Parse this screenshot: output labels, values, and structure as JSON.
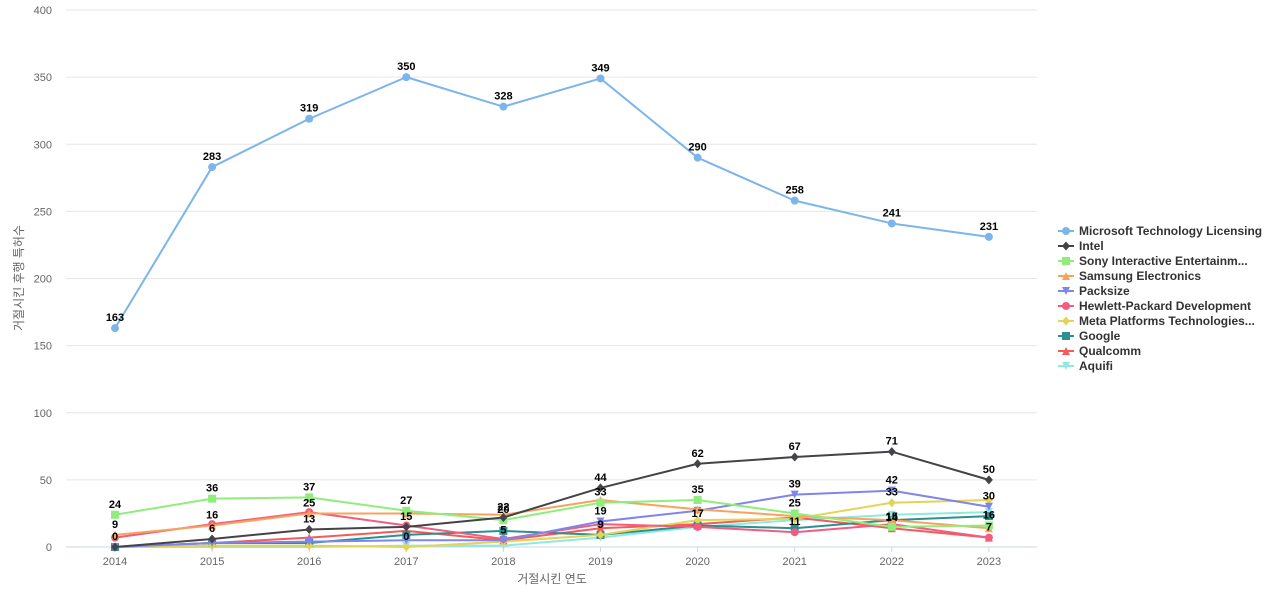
{
  "chart_data": {
    "type": "line",
    "title": "",
    "xlabel": "거절시킨 연도",
    "ylabel": "거절시킨 후행 특허수",
    "ylim": [
      0,
      400
    ],
    "yticks": [
      0,
      50,
      100,
      150,
      200,
      250,
      300,
      350,
      400
    ],
    "categories": [
      "2014",
      "2015",
      "2016",
      "2017",
      "2018",
      "2019",
      "2020",
      "2021",
      "2022",
      "2023"
    ],
    "grid": true,
    "legend_position": "right",
    "series": [
      {
        "name": "Microsoft Technology Licensing",
        "color": "#7cb5ec",
        "marker": "circle",
        "values": [
          163,
          283,
          319,
          350,
          328,
          349,
          290,
          258,
          241,
          231
        ],
        "labeled": true
      },
      {
        "name": "Intel",
        "color": "#434348",
        "marker": "diamond",
        "values": [
          0,
          6,
          13,
          15,
          22,
          44,
          62,
          67,
          71,
          50
        ],
        "labeled": true
      },
      {
        "name": "Sony Interactive Entertainm...",
        "color": "#90ed7d",
        "marker": "square",
        "values": [
          24,
          36,
          37,
          27,
          20,
          33,
          35,
          25,
          15,
          16
        ],
        "labeled": true
      },
      {
        "name": "Samsung Electronics",
        "color": "#f7a35c",
        "marker": "triangle",
        "values": [
          9,
          16,
          25,
          25,
          24,
          35,
          28,
          23,
          20,
          14
        ],
        "labeled": false
      },
      {
        "name": "Packsize",
        "color": "#8085e9",
        "marker": "triangle-down",
        "values": [
          0,
          3,
          4,
          5,
          5,
          19,
          27,
          39,
          42,
          30
        ],
        "labeled": false
      },
      {
        "name": "Hewlett-Packard Development",
        "color": "#f15c80",
        "marker": "circle",
        "values": [
          7,
          17,
          26,
          16,
          6,
          17,
          15,
          11,
          17,
          7
        ],
        "labeled": false
      },
      {
        "name": "Meta Platforms Technologies...",
        "color": "#e4d354",
        "marker": "diamond",
        "values": [
          0,
          1,
          1,
          0,
          4,
          9,
          20,
          21,
          33,
          35
        ],
        "labeled": false
      },
      {
        "name": "Google",
        "color": "#2b908f",
        "marker": "square",
        "values": [
          0,
          3,
          3,
          9,
          12,
          9,
          16,
          14,
          20,
          23
        ],
        "labeled": false
      },
      {
        "name": "Qualcomm",
        "color": "#f45b5b",
        "marker": "triangle",
        "values": [
          0,
          3,
          7,
          12,
          5,
          14,
          17,
          22,
          14,
          7
        ],
        "labeled": false
      },
      {
        "name": "Aquifi",
        "color": "#91e8e1",
        "marker": "triangle-down",
        "values": [
          0,
          0,
          0,
          1,
          1,
          7,
          15,
          20,
          24,
          26
        ],
        "labeled": false
      }
    ],
    "extra_labels": [
      {
        "x": "2014",
        "y": 9,
        "text": "9"
      },
      {
        "x": "2015",
        "y": 16,
        "text": "16"
      },
      {
        "x": "2016",
        "y": 25,
        "text": "25"
      },
      {
        "x": "2017",
        "y": 0,
        "text": "0"
      },
      {
        "x": "2018",
        "y": 5,
        "text": "5"
      },
      {
        "x": "2019",
        "y": 19,
        "text": "19"
      },
      {
        "x": "2019",
        "y": 9,
        "text": "9"
      },
      {
        "x": "2020",
        "y": 17,
        "text": "17"
      },
      {
        "x": "2021",
        "y": 39,
        "text": "39"
      },
      {
        "x": "2021",
        "y": 11,
        "text": "11"
      },
      {
        "x": "2022",
        "y": 42,
        "text": "42"
      },
      {
        "x": "2022",
        "y": 33,
        "text": "33"
      },
      {
        "x": "2022",
        "y": 14,
        "text": "14"
      },
      {
        "x": "2023",
        "y": 30,
        "text": "30"
      },
      {
        "x": "2023",
        "y": 7,
        "text": "7"
      }
    ]
  }
}
